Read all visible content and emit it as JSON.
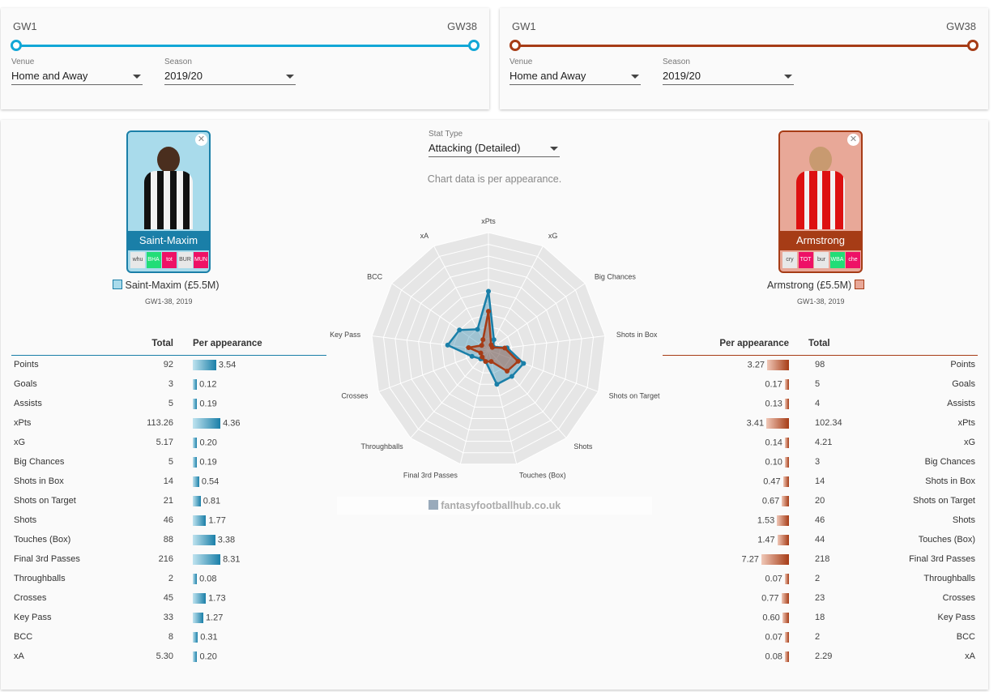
{
  "filters_left": {
    "gw_start": "GW1",
    "gw_end": "GW38",
    "venue_label": "Venue",
    "venue": "Home and Away",
    "season_label": "Season",
    "season": "2019/20",
    "color": "#12a7d6",
    "range": [
      1,
      38
    ]
  },
  "filters_right": {
    "gw_start": "GW1",
    "gw_end": "GW38",
    "venue_label": "Venue",
    "venue": "Home and Away",
    "season_label": "Season",
    "season": "2019/20",
    "color": "#a63c16",
    "range": [
      1,
      38
    ]
  },
  "stat_type": {
    "label": "Stat Type",
    "value": "Attacking (Detailed)",
    "note": "Chart data is per appearance."
  },
  "watermark": "fantasyfootballhub.co.uk",
  "player_left": {
    "name": "Saint-Maxim",
    "legend": "Saint-Maxim (£5.5M)",
    "period": "GW1-38, 2019",
    "color": "#12a7d6",
    "fixtures": [
      {
        "t": "whu",
        "c": "#e8e8e8",
        "fc": "#444"
      },
      {
        "t": "BHA",
        "c": "#22dd77",
        "fc": "#fff"
      },
      {
        "t": "tot",
        "c": "#ee1166",
        "fc": "#fff"
      },
      {
        "t": "BUR",
        "c": "#e8e8e8",
        "fc": "#444"
      },
      {
        "t": "MUN",
        "c": "#ee1166",
        "fc": "#fff"
      }
    ]
  },
  "player_right": {
    "name": "Armstrong",
    "legend": "Armstrong (£5.5M)",
    "period": "GW1-38, 2019",
    "color": "#a63c16",
    "fixtures": [
      {
        "t": "cry",
        "c": "#e8e8e8",
        "fc": "#444"
      },
      {
        "t": "TOT",
        "c": "#ee1166",
        "fc": "#fff"
      },
      {
        "t": "bur",
        "c": "#e8e8e8",
        "fc": "#444"
      },
      {
        "t": "WBA",
        "c": "#22dd77",
        "fc": "#fff"
      },
      {
        "t": "che",
        "c": "#ee1166",
        "fc": "#fff"
      }
    ]
  },
  "table_headers": {
    "total": "Total",
    "per_app": "Per appearance"
  },
  "stats_left": [
    {
      "stat": "Points",
      "total": "92",
      "per": "3.54"
    },
    {
      "stat": "Goals",
      "total": "3",
      "per": "0.12"
    },
    {
      "stat": "Assists",
      "total": "5",
      "per": "0.19"
    },
    {
      "stat": "xPts",
      "total": "113.26",
      "per": "4.36"
    },
    {
      "stat": "xG",
      "total": "5.17",
      "per": "0.20"
    },
    {
      "stat": "Big Chances",
      "total": "5",
      "per": "0.19"
    },
    {
      "stat": "Shots in Box",
      "total": "14",
      "per": "0.54"
    },
    {
      "stat": "Shots on Target",
      "total": "21",
      "per": "0.81"
    },
    {
      "stat": "Shots",
      "total": "46",
      "per": "1.77"
    },
    {
      "stat": "Touches (Box)",
      "total": "88",
      "per": "3.38"
    },
    {
      "stat": "Final 3rd Passes",
      "total": "216",
      "per": "8.31"
    },
    {
      "stat": "Throughballs",
      "total": "2",
      "per": "0.08"
    },
    {
      "stat": "Crosses",
      "total": "45",
      "per": "1.73"
    },
    {
      "stat": "Key Pass",
      "total": "33",
      "per": "1.27"
    },
    {
      "stat": "BCC",
      "total": "8",
      "per": "0.31"
    },
    {
      "stat": "xA",
      "total": "5.30",
      "per": "0.20"
    }
  ],
  "stats_right": [
    {
      "stat": "Points",
      "total": "98",
      "per": "3.27"
    },
    {
      "stat": "Goals",
      "total": "5",
      "per": "0.17"
    },
    {
      "stat": "Assists",
      "total": "4",
      "per": "0.13"
    },
    {
      "stat": "xPts",
      "total": "102.34",
      "per": "3.41"
    },
    {
      "stat": "xG",
      "total": "4.21",
      "per": "0.14"
    },
    {
      "stat": "Big Chances",
      "total": "3",
      "per": "0.10"
    },
    {
      "stat": "Shots in Box",
      "total": "14",
      "per": "0.47"
    },
    {
      "stat": "Shots on Target",
      "total": "20",
      "per": "0.67"
    },
    {
      "stat": "Shots",
      "total": "46",
      "per": "1.53"
    },
    {
      "stat": "Touches (Box)",
      "total": "44",
      "per": "1.47"
    },
    {
      "stat": "Final 3rd Passes",
      "total": "218",
      "per": "7.27"
    },
    {
      "stat": "Throughballs",
      "total": "2",
      "per": "0.07"
    },
    {
      "stat": "Crosses",
      "total": "23",
      "per": "0.77"
    },
    {
      "stat": "Key Pass",
      "total": "18",
      "per": "0.60"
    },
    {
      "stat": "BCC",
      "total": "2",
      "per": "0.07"
    },
    {
      "stat": "xA",
      "total": "2.29",
      "per": "0.08"
    }
  ],
  "chart_data": {
    "type": "radar",
    "axes": [
      "xPts",
      "xG",
      "Big Chances",
      "Shots in Box",
      "Shots on Target",
      "Shots",
      "Touches (Box)",
      "Final 3rd Passes",
      "Throughballs",
      "Crosses",
      "Key Pass",
      "BCC",
      "xA"
    ],
    "series": [
      {
        "name": "Saint-Maxim",
        "color": "#1a7fa8",
        "values": [
          0.5,
          0.1,
          0.05,
          0.16,
          0.32,
          0.3,
          0.3,
          0.1,
          0.1,
          0.15,
          0.35,
          0.3,
          0.2
        ]
      },
      {
        "name": "Armstrong",
        "color": "#a63c16",
        "values": [
          0.33,
          0.05,
          0.04,
          0.14,
          0.27,
          0.24,
          0.1,
          0.1,
          0.08,
          0.07,
          0.17,
          0.07,
          0.1
        ]
      }
    ]
  }
}
